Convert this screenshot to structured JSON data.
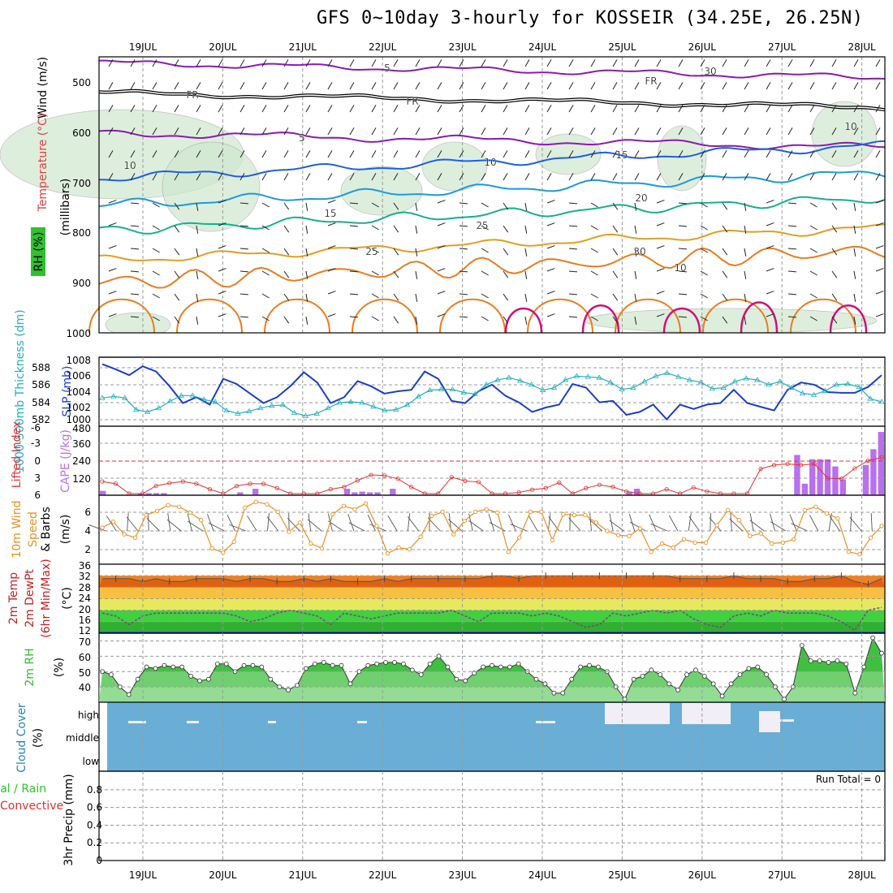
{
  "title": "GFS 0~10day 3-hourly for KOSSEIR (34.25E, 26.25N)",
  "dates": [
    "19JUL",
    "20JUL",
    "21JUL",
    "22JUL",
    "23JUL",
    "24JUL",
    "25JUL",
    "26JUL",
    "27JUL",
    "28JUL"
  ],
  "colors": {
    "purple": "#8a1bb0",
    "black": "#000000",
    "blue": "#1e5fdc",
    "lightblue": "#1b9ae0",
    "teal": "#16b090",
    "gold": "#e0a020",
    "orange": "#e87d20",
    "magenta": "#d0107a",
    "cloud": "#6aaed6",
    "green": "#30c030",
    "lime": "#40e040"
  },
  "chart_data": [
    {
      "type": "contour",
      "name": "upper-air",
      "ylabel_left": [
        "RH (%)",
        "Temperature (°C)",
        "Wind (m/s)"
      ],
      "ylabel_right": "(millibars)",
      "y_ticks": [
        "500",
        "600",
        "700",
        "800",
        "900",
        "1000"
      ],
      "ylim": [
        1000,
        450
      ],
      "contour_labels": [
        {
          "label": "5",
          "color": "purple"
        },
        {
          "label": "FR",
          "color": "black"
        },
        {
          "label": "FR",
          "color": "black"
        },
        {
          "label": "FR",
          "color": "black"
        },
        {
          "label": "5",
          "color": "purple"
        },
        {
          "label": "10",
          "color": "blue"
        },
        {
          "label": "15",
          "color": "lightblue"
        },
        {
          "label": "15",
          "color": "lightblue"
        },
        {
          "label": "20",
          "color": "teal"
        },
        {
          "label": "25",
          "color": "gold"
        },
        {
          "label": "25",
          "color": "gold"
        },
        {
          "label": "30",
          "color": "orange"
        },
        {
          "label": "10",
          "color": "gray"
        },
        {
          "label": "30",
          "color": "gray"
        },
        {
          "label": "10",
          "color": "gray"
        },
        {
          "label": "10",
          "color": "gray"
        }
      ]
    },
    {
      "type": "line",
      "name": "thickness-slp",
      "ylabel_left": "1000-500mb Thickness (dm)",
      "ylabel_right": "SLP (mb)",
      "left_ticks": [
        "588",
        "586",
        "584",
        "582"
      ],
      "right_ticks": [
        "1008",
        "1006",
        "1004",
        "1002",
        "1000"
      ],
      "series": [
        {
          "name": "SLP (mb)",
          "values": [
            1007.5,
            1006.8,
            1006.0,
            1007.2,
            1006.5,
            1004.5,
            1002.2,
            1003.0,
            1002.0,
            1005.5,
            1004.8,
            1003.5,
            1002.2,
            1003.0,
            1004.5,
            1006.4,
            1005.0,
            1002.2,
            1003.0,
            1005.2,
            1004.5,
            1003.5,
            1003.8,
            1004.0,
            1006.5,
            1005.5,
            1002.5,
            1002.2,
            1003.8,
            1004.7,
            1003.2,
            1002.3,
            1001.0,
            1001.6,
            1002.0,
            1004.8,
            1004.3,
            1002.3,
            1002.5,
            1000.6,
            1001.0,
            1002.0,
            1000.0,
            1002.0,
            1001.4,
            1002.0,
            1002.2,
            1004.0,
            1002.2,
            1001.7,
            1001.2,
            1004.0,
            1005.0,
            1004.7,
            1003.7,
            1003.6,
            1003.6,
            1004.4,
            1006.0
          ]
        },
        {
          "name": "1000-500mb Thickness (dm)",
          "values": [
            584.2,
            584.4,
            584.2,
            582.7,
            582.4,
            582.9,
            583.8,
            584.5,
            584.5,
            584.0,
            583.7,
            582.6,
            582.2,
            582.5,
            582.9,
            583.2,
            583.3,
            582.3,
            581.9,
            582.2,
            582.9,
            583.6,
            583.7,
            583.6,
            583.1,
            582.6,
            582.7,
            583.3,
            584.4,
            585.2,
            585.3,
            585.3,
            584.9,
            584.7,
            585.9,
            586.5,
            586.8,
            586.4,
            585.9,
            585.2,
            585.5,
            586.5,
            587.0,
            586.9,
            586.8,
            586.2,
            585.3,
            585.5,
            586.3,
            587.0,
            587.4,
            586.9,
            586.5,
            586.2,
            585.4,
            585.5,
            586.3,
            586.7,
            586.5,
            585.9,
            586.3,
            585.5,
            584.8,
            584.6,
            585.1,
            585.9,
            586.0,
            585.6,
            584.1,
            583.7
          ]
        }
      ]
    },
    {
      "type": "line+bar",
      "name": "lifted-cape",
      "ylabel_left": "Lifted Index",
      "ylabel_right": "CAPE (J/kg)",
      "left_ticks": [
        "-6",
        "-3",
        "0",
        "3",
        "6"
      ],
      "right_ticks": [
        "480",
        "360",
        "240",
        "120"
      ],
      "lifted_index": [
        3.8,
        4.2,
        6,
        6,
        4.6,
        4.1,
        3.8,
        4.2,
        5.2,
        6,
        4.6,
        4.2,
        4.2,
        5.0,
        6,
        6,
        6,
        5.2,
        4.8,
        3.6,
        2.6,
        2.7,
        3.3,
        4.8,
        6,
        6,
        3.0,
        3.7,
        3.9,
        6,
        6,
        5.8,
        5.3,
        5.0,
        4.0,
        6,
        5.0,
        4.4,
        4.8,
        5.6,
        6,
        6,
        5.2,
        6,
        4.9,
        5.6,
        6,
        6,
        6,
        1.5,
        0.8,
        0.6,
        0.8,
        0.6,
        3.2,
        3.3,
        1.4,
        0.0,
        -0.6
      ],
      "cape": [
        30,
        0,
        0,
        0,
        0,
        10,
        15,
        15,
        15,
        0,
        0,
        0,
        0,
        0,
        0,
        0,
        0,
        0,
        20,
        0,
        45,
        0,
        0,
        0,
        0,
        0,
        0,
        0,
        0,
        0,
        0,
        0,
        45,
        20,
        25,
        20,
        20,
        0,
        45,
        0,
        0,
        0,
        0,
        0,
        0,
        0,
        0,
        0,
        0,
        0,
        0,
        0,
        0,
        0,
        0,
        0,
        0,
        0,
        0,
        0,
        0,
        0,
        0,
        0,
        0,
        0,
        0,
        0,
        0,
        20,
        45,
        0,
        0,
        0,
        0,
        0,
        0,
        0,
        0,
        0,
        0,
        0,
        0,
        0,
        0,
        0,
        0,
        0,
        0,
        0,
        0,
        280,
        80,
        250,
        250,
        250,
        200,
        110,
        0,
        0,
        210,
        320,
        440
      ]
    },
    {
      "type": "line",
      "name": "wind-10m",
      "ylabel_left": "10m Wind",
      "ylabel_right": "Speed & Barbs (m/s)",
      "y_ticks": [
        "6",
        "4",
        "2"
      ],
      "values": [
        4.0,
        4.7,
        3.2,
        2.8,
        5.5,
        6.0,
        6.7,
        6.5,
        5.8,
        4.9,
        1.5,
        1.0,
        2.3,
        6.4,
        7.1,
        6.8,
        5.9,
        3.5,
        4.6,
        2.1,
        1.5,
        5.6,
        6.6,
        6.2,
        6.9,
        4.2,
        0.9,
        1.6,
        1.4,
        2.9,
        5.4,
        5.9,
        3.2,
        4.8,
        5.9,
        6.2,
        5.8,
        1.1,
        2.8,
        5.9,
        5.9,
        2.5,
        5.6,
        5.5,
        5.5,
        4.6,
        3.6,
        3.1,
        3.0,
        3.9,
        1.1,
        2.1,
        1.6,
        2.6,
        2.2,
        2.2,
        4.3,
        6.1,
        4.9,
        3.0,
        3.3,
        2.1,
        2.2,
        2.6,
        6.1,
        6.5,
        5.7,
        5.1,
        1.1,
        0.8,
        2.8,
        4.2
      ]
    },
    {
      "type": "area",
      "name": "temp-dewpt",
      "ylabel_left": [
        "2m Temp",
        "2m DewPt",
        "(6hr Min/Max)"
      ],
      "ylabel_right": "(°C)",
      "y_ticks": [
        "36",
        "32",
        "28",
        "24",
        "20",
        "16",
        "12"
      ],
      "temp": [
        31,
        31,
        31,
        30,
        31,
        30,
        30,
        31,
        31,
        31,
        30,
        31,
        31,
        30,
        30,
        31,
        30,
        31,
        30,
        30,
        30,
        31,
        30,
        31,
        31,
        31,
        31,
        31,
        31,
        32,
        32,
        31,
        32,
        32,
        32,
        32,
        32,
        32,
        32,
        32,
        32,
        32,
        32,
        31,
        31,
        31,
        31,
        32,
        31,
        31,
        31,
        30,
        30,
        31,
        31,
        32,
        30,
        29,
        31
      ],
      "dewpt": [
        19,
        18,
        15,
        18,
        19,
        19,
        19,
        19,
        19,
        19,
        18,
        16,
        17,
        19,
        20,
        19,
        18,
        15,
        19,
        18,
        17,
        18,
        19,
        19,
        19,
        19,
        20,
        18,
        16,
        19,
        19,
        19,
        18,
        19,
        18,
        16,
        14,
        15,
        19,
        18,
        19,
        20,
        19,
        20,
        17,
        15,
        14,
        18,
        19,
        18,
        20,
        19,
        19,
        19,
        18,
        16,
        13,
        20,
        21
      ]
    },
    {
      "type": "area",
      "name": "rh-2m",
      "ylabel_left": "2m RH",
      "ylabel_right": "(%)",
      "y_ticks": [
        "70",
        "60",
        "50",
        "40"
      ],
      "values": [
        50,
        48,
        40,
        35,
        45,
        53,
        52,
        54,
        53,
        53,
        47,
        44,
        45,
        55,
        55,
        50,
        54,
        54,
        53,
        45,
        40,
        38,
        41,
        52,
        55,
        56,
        54,
        54,
        42,
        50,
        54,
        55,
        56,
        56,
        55,
        51,
        48,
        55,
        60,
        53,
        45,
        44,
        49,
        53,
        54,
        53,
        53,
        55,
        50,
        45,
        42,
        36,
        36,
        45,
        53,
        54,
        53,
        50,
        40,
        32,
        45,
        47,
        51,
        48,
        42,
        38,
        48,
        51,
        47,
        42,
        34,
        42,
        48,
        52,
        53,
        48,
        40,
        32,
        40,
        67,
        57,
        57,
        56,
        57,
        55,
        36,
        53,
        72,
        62
      ]
    },
    {
      "type": "area",
      "name": "cloud-cover",
      "ylabel_left": "Cloud Cover",
      "ylabel_right": "(%)",
      "y_ticks": [
        "high",
        "middle",
        "low"
      ]
    },
    {
      "type": "bar",
      "name": "precip",
      "ylabel_left": [
        "Total / Rain",
        "Convective"
      ],
      "ylabel_right": "3hr Precip (mm)",
      "y_ticks": [
        "0.8",
        "0.6",
        "0.4",
        "0.2",
        "0"
      ],
      "ylim": [
        0,
        0.9
      ],
      "run_total": "Run Total = 0",
      "values": []
    }
  ]
}
